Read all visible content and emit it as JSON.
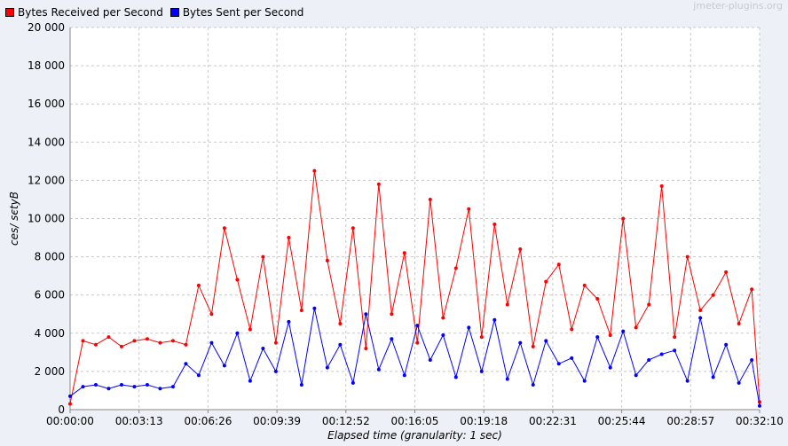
{
  "watermark": "jmeter-plugins.org",
  "chart_data": {
    "type": "line",
    "title": "",
    "xlabel": "Elapsed time (granularity: 1 sec)",
    "ylabel": "ces/ sєtyB",
    "ylim": [
      0,
      20000
    ],
    "xlim_seconds": [
      0,
      1930
    ],
    "grid": true,
    "legend_position": "top-left",
    "y_ticks": [
      0,
      2000,
      4000,
      6000,
      8000,
      10000,
      12000,
      14000,
      16000,
      18000,
      20000
    ],
    "y_tick_labels": [
      "0",
      "2 000",
      "4 000",
      "6 000",
      "8 000",
      "10 000",
      "12 000",
      "14 000",
      "16 000",
      "18 000",
      "20 000"
    ],
    "x_ticks": [
      "00:00:00",
      "00:03:13",
      "00:06:26",
      "00:09:39",
      "00:12:52",
      "00:16:05",
      "00:19:18",
      "00:22:31",
      "00:25:44",
      "00:28:57",
      "00:32:10"
    ],
    "x_values": [
      0,
      36,
      72,
      108,
      144,
      180,
      216,
      252,
      288,
      324,
      360,
      396,
      432,
      468,
      504,
      540,
      576,
      612,
      648,
      684,
      720,
      756,
      792,
      828,
      864,
      900,
      936,
      972,
      1008,
      1044,
      1080,
      1116,
      1152,
      1188,
      1224,
      1260,
      1296,
      1332,
      1368,
      1404,
      1440,
      1476,
      1512,
      1548,
      1584,
      1620,
      1656,
      1692,
      1728,
      1764,
      1800,
      1836,
      1872,
      1908,
      1930
    ],
    "series": [
      {
        "name": "Bytes Received per Second",
        "color": "#ff0000",
        "values": [
          300,
          3600,
          3400,
          3800,
          3300,
          3600,
          3700,
          3500,
          3600,
          3400,
          6500,
          5000,
          9500,
          6800,
          4200,
          8000,
          3500,
          9000,
          5200,
          12500,
          7800,
          4500,
          9500,
          3200,
          11800,
          5000,
          8200,
          3500,
          11000,
          4800,
          7400,
          10500,
          3800,
          9700,
          5500,
          8400,
          3300,
          6700,
          7600,
          4200,
          6500,
          5800,
          3900,
          10000,
          4300,
          5500,
          11700,
          3800,
          8000,
          5200,
          6000,
          7200,
          4500,
          6300,
          400
        ]
      },
      {
        "name": "Bytes Sent per Second",
        "color": "#0000ff",
        "values": [
          700,
          1200,
          1300,
          1100,
          1300,
          1200,
          1300,
          1100,
          1200,
          2400,
          1800,
          3500,
          2300,
          4000,
          1500,
          3200,
          2000,
          4600,
          1300,
          5300,
          2200,
          3400,
          1400,
          5000,
          2100,
          3700,
          1800,
          4400,
          2600,
          3900,
          1700,
          4300,
          2000,
          4700,
          1600,
          3500,
          1300,
          3600,
          2400,
          2700,
          1500,
          3800,
          2200,
          4100,
          1800,
          2600,
          2900,
          3100,
          1500,
          4800,
          1700,
          3400,
          1400,
          2600,
          200
        ]
      }
    ]
  }
}
